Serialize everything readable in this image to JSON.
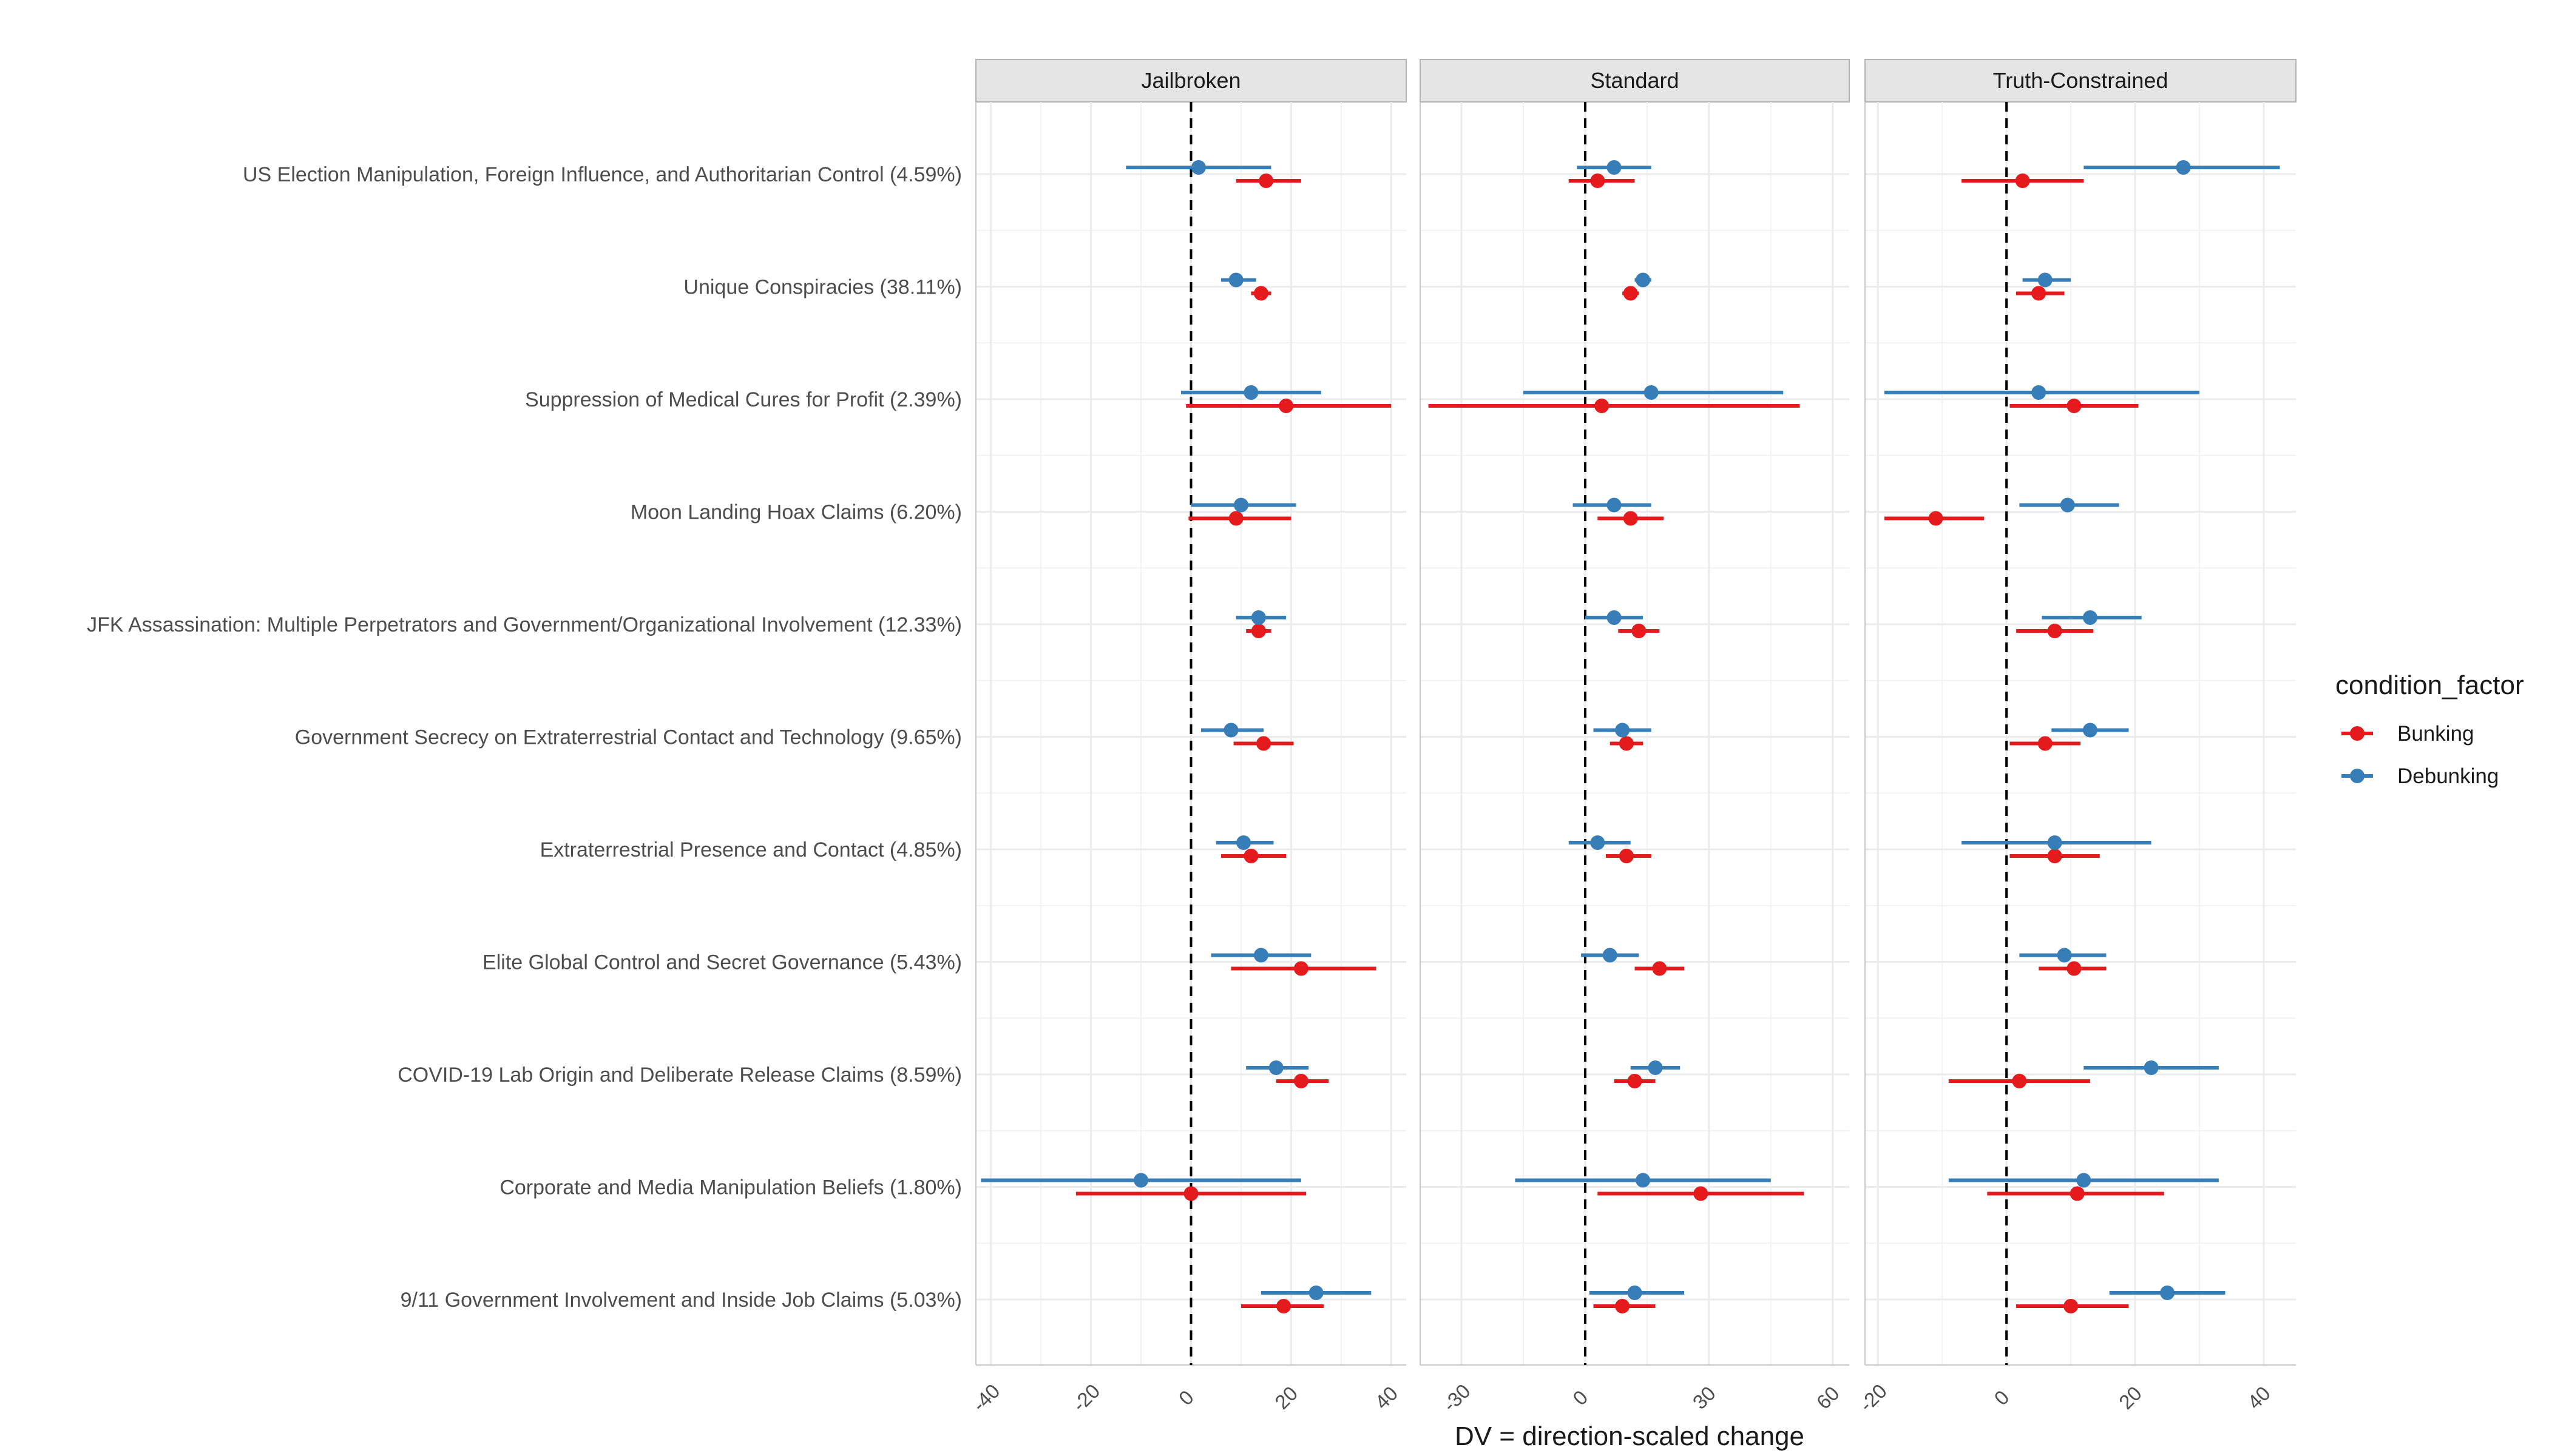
{
  "chart_data": {
    "type": "forest",
    "xlabel": "DV = direction-scaled change",
    "legend": {
      "title": "condition_factor",
      "position": "right",
      "items": [
        {
          "name": "Bunking",
          "color": "#E41A1C"
        },
        {
          "name": "Debunking",
          "color": "#377EB8"
        }
      ]
    },
    "categories": [
      "US Election Manipulation, Foreign Influence, and Authoritarian Control (4.59%)",
      "Unique Conspiracies (38.11%)",
      "Suppression of Medical Cures for Profit (2.39%)",
      "Moon Landing Hoax Claims (6.20%)",
      "JFK Assassination: Multiple Perpetrators and Government/Organizational Involvement (12.33%)",
      "Government Secrecy on Extraterrestrial Contact and Technology (9.65%)",
      "Extraterrestrial Presence and Contact (4.85%)",
      "Elite Global Control and Secret Governance (5.43%)",
      "COVID-19 Lab Origin and Deliberate Release Claims (8.59%)",
      "Corporate and Media Manipulation Beliefs (1.80%)",
      "9/11 Government Involvement and Inside Job Claims (5.03%)"
    ],
    "panels": [
      {
        "title": "Jailbroken",
        "xlim": [
          -43,
          43
        ],
        "ticks": [
          -40,
          -20,
          0,
          20,
          40
        ],
        "tick_labels": [
          "-40",
          "-20",
          "0",
          "20",
          "40"
        ],
        "series": [
          {
            "name": "Bunking",
            "points": [
              {
                "est": 15,
                "lo": 9,
                "hi": 22
              },
              {
                "est": 14,
                "lo": 12,
                "hi": 16
              },
              {
                "est": 19,
                "lo": -1,
                "hi": 40
              },
              {
                "est": 9,
                "lo": -0.5,
                "hi": 20
              },
              {
                "est": 13.5,
                "lo": 11,
                "hi": 16
              },
              {
                "est": 14.5,
                "lo": 8.5,
                "hi": 20.5
              },
              {
                "est": 12,
                "lo": 6,
                "hi": 19
              },
              {
                "est": 22,
                "lo": 8,
                "hi": 37
              },
              {
                "est": 22,
                "lo": 17,
                "hi": 27.5
              },
              {
                "est": 0,
                "lo": -23,
                "hi": 23
              },
              {
                "est": 18.5,
                "lo": 10,
                "hi": 26.5
              }
            ]
          },
          {
            "name": "Debunking",
            "points": [
              {
                "est": 1.5,
                "lo": -13,
                "hi": 16
              },
              {
                "est": 9,
                "lo": 6,
                "hi": 13
              },
              {
                "est": 12,
                "lo": -2,
                "hi": 26
              },
              {
                "est": 10,
                "lo": 0,
                "hi": 21
              },
              {
                "est": 13.5,
                "lo": 9,
                "hi": 19
              },
              {
                "est": 8,
                "lo": 2,
                "hi": 14.5
              },
              {
                "est": 10.5,
                "lo": 5,
                "hi": 16.5
              },
              {
                "est": 14,
                "lo": 4,
                "hi": 24
              },
              {
                "est": 17,
                "lo": 11,
                "hi": 23.5
              },
              {
                "est": -10,
                "lo": -42,
                "hi": 22
              },
              {
                "est": 25,
                "lo": 14,
                "hi": 36
              }
            ]
          }
        ]
      },
      {
        "title": "Standard",
        "xlim": [
          -40,
          64
        ],
        "ticks": [
          -30,
          0,
          30,
          60
        ],
        "tick_labels": [
          "-30",
          "0",
          "30",
          "60"
        ],
        "series": [
          {
            "name": "Bunking",
            "points": [
              {
                "est": 3,
                "lo": -4,
                "hi": 12
              },
              {
                "est": 11,
                "lo": 9,
                "hi": 13
              },
              {
                "est": 4,
                "lo": -38,
                "hi": 52
              },
              {
                "est": 11,
                "lo": 3,
                "hi": 19
              },
              {
                "est": 13,
                "lo": 8,
                "hi": 18
              },
              {
                "est": 10,
                "lo": 6,
                "hi": 14
              },
              {
                "est": 10,
                "lo": 5,
                "hi": 16
              },
              {
                "est": 18,
                "lo": 12,
                "hi": 24
              },
              {
                "est": 12,
                "lo": 7,
                "hi": 17
              },
              {
                "est": 28,
                "lo": 3,
                "hi": 53
              },
              {
                "est": 9,
                "lo": 2,
                "hi": 17
              }
            ]
          },
          {
            "name": "Debunking",
            "points": [
              {
                "est": 7,
                "lo": -2,
                "hi": 16
              },
              {
                "est": 14,
                "lo": 12,
                "hi": 16
              },
              {
                "est": 16,
                "lo": -15,
                "hi": 48
              },
              {
                "est": 7,
                "lo": -3,
                "hi": 16
              },
              {
                "est": 7,
                "lo": 0,
                "hi": 14
              },
              {
                "est": 9,
                "lo": 2,
                "hi": 16
              },
              {
                "est": 3,
                "lo": -4,
                "hi": 11
              },
              {
                "est": 6,
                "lo": -1,
                "hi": 13
              },
              {
                "est": 17,
                "lo": 11,
                "hi": 23
              },
              {
                "est": 14,
                "lo": -17,
                "hi": 45
              },
              {
                "est": 12,
                "lo": 1,
                "hi": 24
              }
            ]
          }
        ]
      },
      {
        "title": "Truth-Constrained",
        "xlim": [
          -22,
          45
        ],
        "ticks": [
          -20,
          0,
          20,
          40
        ],
        "tick_labels": [
          "-20",
          "0",
          "20",
          "40"
        ],
        "series": [
          {
            "name": "Bunking",
            "points": [
              {
                "est": 2.5,
                "lo": -7,
                "hi": 12
              },
              {
                "est": 5,
                "lo": 1.5,
                "hi": 9
              },
              {
                "est": 10.5,
                "lo": 0.5,
                "hi": 20.5
              },
              {
                "est": -11,
                "lo": -19,
                "hi": -3.5
              },
              {
                "est": 7.5,
                "lo": 1.5,
                "hi": 13.5
              },
              {
                "est": 6,
                "lo": 0.5,
                "hi": 11.5
              },
              {
                "est": 7.5,
                "lo": 0.5,
                "hi": 14.5
              },
              {
                "est": 10.5,
                "lo": 5,
                "hi": 15.5
              },
              {
                "est": 2,
                "lo": -9,
                "hi": 13
              },
              {
                "est": 11,
                "lo": -3,
                "hi": 24.5
              },
              {
                "est": 10,
                "lo": 1.5,
                "hi": 19
              }
            ]
          },
          {
            "name": "Debunking",
            "points": [
              {
                "est": 27.5,
                "lo": 12,
                "hi": 42.5
              },
              {
                "est": 6,
                "lo": 2.5,
                "hi": 10
              },
              {
                "est": 5,
                "lo": -19,
                "hi": 30
              },
              {
                "est": 9.5,
                "lo": 2,
                "hi": 17.5
              },
              {
                "est": 13,
                "lo": 5.5,
                "hi": 21
              },
              {
                "est": 13,
                "lo": 7,
                "hi": 19
              },
              {
                "est": 7.5,
                "lo": -7,
                "hi": 22.5
              },
              {
                "est": 9,
                "lo": 2,
                "hi": 15.5
              },
              {
                "est": 22.5,
                "lo": 12,
                "hi": 33
              },
              {
                "est": 12,
                "lo": -9,
                "hi": 33
              },
              {
                "est": 25,
                "lo": 16,
                "hi": 34
              }
            ]
          }
        ]
      }
    ]
  }
}
